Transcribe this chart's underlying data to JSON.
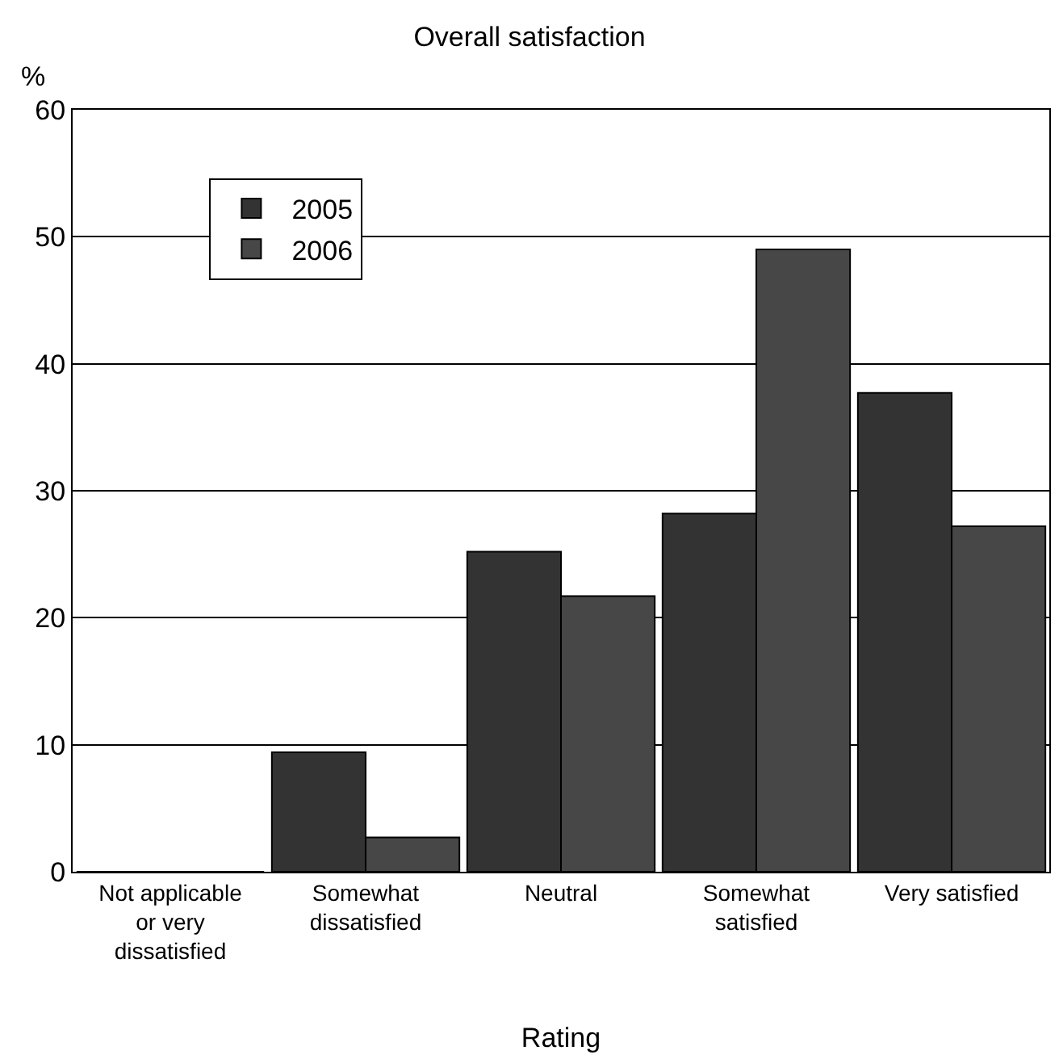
{
  "chart_data": {
    "type": "bar",
    "title": "Overall satisfaction",
    "xlabel": "Rating",
    "ylabel": "%",
    "categories": [
      "Not applicable\nor very\ndissatisfied",
      "Somewhat\ndissatisfied",
      "Neutral",
      "Somewhat\nsatisfied",
      "Very satisfied"
    ],
    "series": [
      {
        "name": "2005",
        "color": "#333333",
        "values": [
          0,
          9.4,
          25.2,
          28.2,
          37.7
        ]
      },
      {
        "name": "2006",
        "color": "#474747",
        "values": [
          0,
          2.7,
          21.7,
          49.0,
          27.2
        ]
      }
    ],
    "ylim": [
      0,
      60
    ],
    "yticks": [
      0,
      10,
      20,
      30,
      40,
      50,
      60
    ],
    "grid": "y",
    "legend": "top left"
  }
}
